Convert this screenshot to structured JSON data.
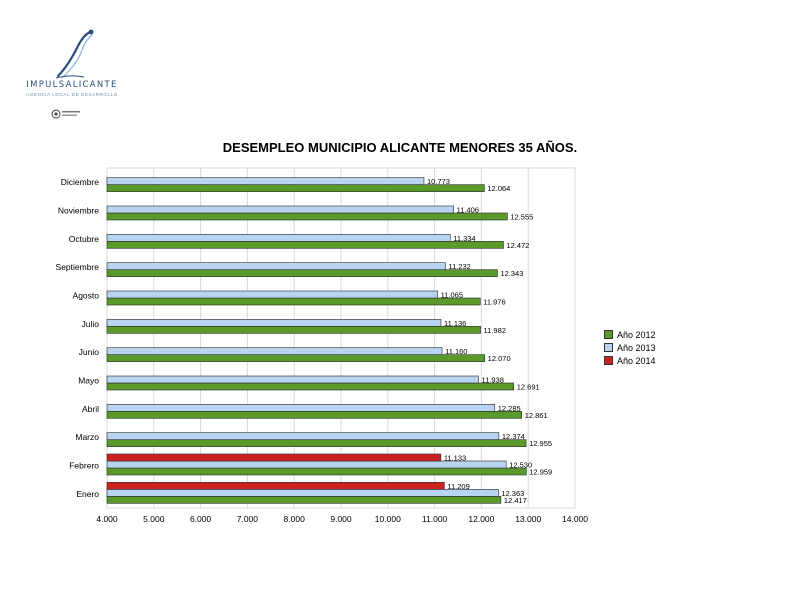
{
  "logo": {
    "name": "IMPULSALICANTE",
    "tagline": "AGENCIA LOCAL DE DESARROLLO"
  },
  "colors": {
    "y2012": "#5a9a2b",
    "y2013": "#b8d4f0",
    "y2014": "#cc2222",
    "grid": "#d8d8d8",
    "bar_border": "#2a2a2a"
  },
  "chart_data": {
    "type": "bar",
    "orientation": "horizontal",
    "title": "DESEMPLEO MUNICIPIO ALICANTE MENORES 35 AÑOS.",
    "categories": [
      "Diciembre",
      "Noviembre",
      "Octubre",
      "Septiembre",
      "Agosto",
      "Julio",
      "Junio",
      "Mayo",
      "Abril",
      "Marzo",
      "Febrero",
      "Enero"
    ],
    "series": [
      {
        "name": "Año 2012",
        "key": "y2012",
        "values": [
          12064,
          12555,
          12472,
          12343,
          11976,
          11982,
          12070,
          12691,
          12861,
          12955,
          12959,
          12417
        ],
        "labels": [
          "12.064",
          "12.555",
          "12.472",
          "12.343",
          "11.976",
          "11.982",
          "12.070",
          "12.691",
          "12.861",
          "12.955",
          "12.959",
          "12.417"
        ]
      },
      {
        "name": "Año 2013",
        "key": "y2013",
        "values": [
          10773,
          11406,
          11334,
          11232,
          11065,
          11136,
          11160,
          11938,
          12285,
          12374,
          12530,
          12363
        ],
        "labels": [
          "10.773",
          "11.406",
          "11.334",
          "11.232",
          "11.065",
          "11.136",
          "11.160",
          "11.938",
          "12.285",
          "12.374",
          "12.530",
          "12.363"
        ]
      },
      {
        "name": "Año 2014",
        "key": "y2014",
        "values": [
          null,
          null,
          null,
          null,
          null,
          null,
          null,
          null,
          null,
          null,
          11133,
          11209
        ],
        "labels": [
          null,
          null,
          null,
          null,
          null,
          null,
          null,
          null,
          null,
          null,
          "11.133",
          "11.209"
        ]
      }
    ],
    "xlim": [
      4000,
      14000
    ],
    "xticks": [
      4000,
      5000,
      6000,
      7000,
      8000,
      9000,
      10000,
      11000,
      12000,
      13000,
      14000
    ],
    "xtick_labels": [
      "4.000",
      "5.000",
      "6.000",
      "7.000",
      "8.000",
      "9.000",
      "10.000",
      "11.000",
      "12.000",
      "13.000",
      "14.000"
    ],
    "grid": true,
    "legend_position": "right",
    "legend": [
      "Año 2012",
      "Año 2013",
      "Año 2014"
    ]
  }
}
